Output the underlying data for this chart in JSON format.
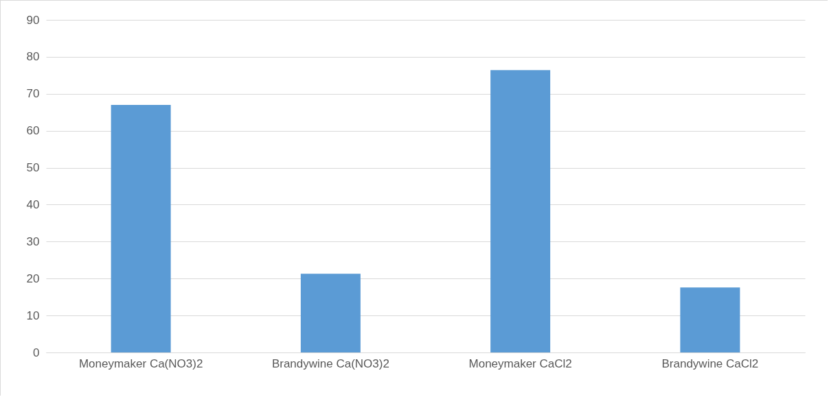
{
  "chart_data": {
    "type": "bar",
    "categories": [
      "Moneymaker Ca(NO3)2",
      "Brandywine Ca(NO3)2",
      "Moneymaker CaCl2",
      "Brandywine CaCl2"
    ],
    "values": [
      67.0,
      21.3,
      76.4,
      17.6
    ],
    "color": "#5b9bd5",
    "ylim": [
      0,
      90
    ],
    "yticks": [
      0,
      10,
      20,
      30,
      40,
      50,
      60,
      70,
      80,
      90
    ],
    "grid": "y"
  }
}
